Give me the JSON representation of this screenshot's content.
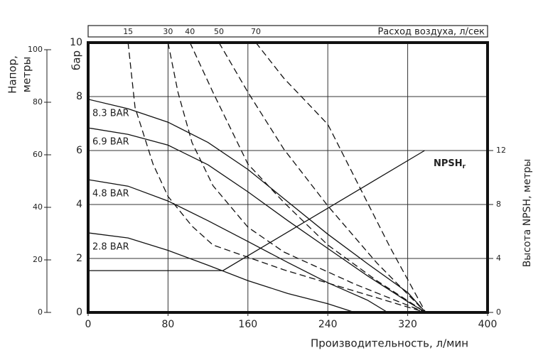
{
  "chart_data": {
    "type": "line",
    "xlabel": "Производительность, л/мин",
    "ylabel": "бар",
    "y2label": "Высота NPSH, метры",
    "top_axis_label": "Расход воздуха, л/сек",
    "head_axis": {
      "label": [
        "Напор,",
        "метры"
      ],
      "lim": [
        0,
        102.7
      ],
      "ticks": [
        0,
        20,
        40,
        60,
        80,
        100
      ]
    },
    "xlim": [
      0,
      400
    ],
    "xticks": [
      0,
      80,
      160,
      240,
      320,
      400
    ],
    "ylim": [
      0,
      10
    ],
    "yticks": [
      0,
      2,
      4,
      6,
      8,
      10
    ],
    "y2lim": [
      0,
      20
    ],
    "y2ticks": [
      0,
      4,
      8,
      12
    ],
    "grid": true,
    "series": [
      {
        "name": "8.3 BAR",
        "style": "solid",
        "color": "#111",
        "x": [
          0,
          40,
          80,
          120,
          160,
          200,
          240,
          280,
          320,
          338
        ],
        "values": [
          7.9,
          7.55,
          7.05,
          6.3,
          5.3,
          4.1,
          2.9,
          1.8,
          0.74,
          0
        ]
      },
      {
        "name": "6.9 BAR",
        "style": "solid",
        "color": "#111",
        "x": [
          0,
          40,
          80,
          120,
          160,
          200,
          240,
          280,
          320,
          338
        ],
        "values": [
          6.84,
          6.6,
          6.2,
          5.47,
          4.47,
          3.4,
          2.37,
          1.35,
          0.4,
          0
        ]
      },
      {
        "name": "4.8 BAR",
        "style": "solid",
        "color": "#111",
        "x": [
          0,
          40,
          80,
          120,
          160,
          200,
          240,
          280,
          300
        ],
        "values": [
          4.92,
          4.68,
          4.13,
          3.4,
          2.63,
          1.85,
          1.1,
          0.45,
          0
        ]
      },
      {
        "name": "2.8 BAR",
        "style": "solid",
        "color": "#111",
        "x": [
          0,
          40,
          80,
          120,
          160,
          200,
          240,
          267
        ],
        "values": [
          2.95,
          2.76,
          2.3,
          1.75,
          1.18,
          0.7,
          0.32,
          0
        ]
      },
      {
        "name": "15",
        "style": "dashed",
        "color": "#111",
        "x": [
          40,
          47,
          65,
          80,
          104,
          125,
          196,
          267,
          338
        ],
        "values": [
          10,
          7.6,
          5.5,
          4.3,
          3.2,
          2.5,
          1.58,
          0.79,
          0
        ]
      },
      {
        "name": "30",
        "style": "dashed",
        "color": "#111",
        "x": [
          80,
          90,
          104,
          125,
          160,
          196,
          267,
          338
        ],
        "values": [
          10,
          8.16,
          6.3,
          4.7,
          3.16,
          2.24,
          1.05,
          0
        ]
      },
      {
        "name": "40",
        "style": "dashed",
        "color": "#111",
        "x": [
          102,
          125,
          160,
          196,
          240,
          289,
          338
        ],
        "values": [
          10,
          8.16,
          5.5,
          4.08,
          2.5,
          1.18,
          0
        ]
      },
      {
        "name": "50",
        "style": "dashed",
        "color": "#111",
        "x": [
          131,
          160,
          196,
          240,
          289,
          338
        ],
        "values": [
          10,
          8.16,
          6.05,
          3.95,
          1.84,
          0
        ]
      },
      {
        "name": "70",
        "style": "dashed",
        "color": "#111",
        "x": [
          168,
          196,
          240,
          267,
          303,
          338
        ],
        "values": [
          10,
          8.68,
          6.97,
          5.0,
          2.37,
          0
        ]
      },
      {
        "name": "NPSH",
        "name_subscript": "r",
        "style": "solid",
        "axis": "y2",
        "color": "#111",
        "x": [
          0,
          135,
          337
        ],
        "values": [
          3.1,
          3.1,
          12
        ]
      }
    ]
  }
}
